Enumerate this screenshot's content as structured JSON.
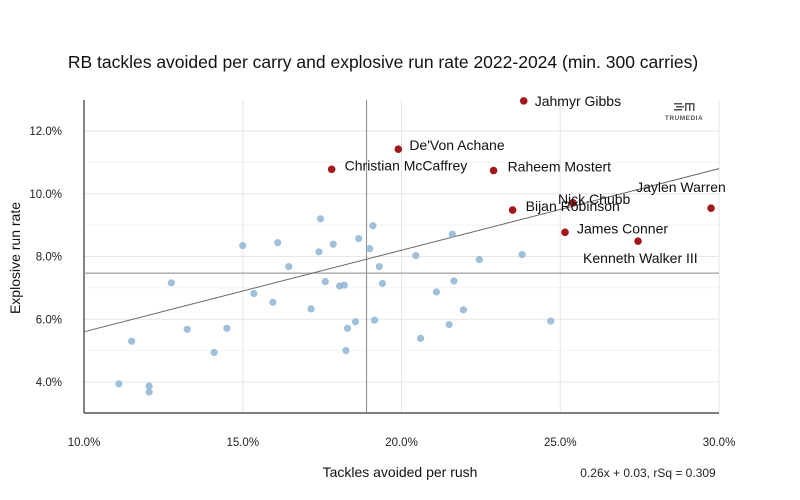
{
  "chart_data": {
    "type": "scatter",
    "title": "RB tackles avoided per carry and explosive run rate 2022-2024 (min. 300 carries)",
    "xlabel": "Tackles avoided per rush",
    "ylabel": "Explosive run rate",
    "xlim": [
      10,
      30
    ],
    "ylim": [
      3,
      13
    ],
    "x_ticks": [
      10,
      15,
      20,
      25,
      30
    ],
    "x_tick_labels": [
      "10.0%",
      "15.0%",
      "20.0%",
      "25.0%",
      "30.0%"
    ],
    "y_ticks": [
      4,
      6,
      8,
      10,
      12
    ],
    "y_tick_labels": [
      "4.0%",
      "6.0%",
      "8.0%",
      "10.0%",
      "12.0%"
    ],
    "grid": true,
    "mean_lines": {
      "x": 18.9,
      "y": 7.47
    },
    "trendline": {
      "slope": 0.26,
      "intercept": 0.03,
      "equation": "0.26x + 0.03, rSq = 0.309"
    },
    "logo": "TRUMEDIA",
    "colors": {
      "other": "#8fb4d3",
      "highlight": "#a3191b",
      "trend": "#666666",
      "grid": "#e6e6e6",
      "mean": "#888888"
    },
    "series": [
      {
        "name": "highlighted",
        "points": [
          {
            "label": "Jahmyr Gibbs",
            "x": 23.85,
            "y": 12.96
          },
          {
            "label": "De'Von Achane",
            "x": 19.9,
            "y": 11.42
          },
          {
            "label": "Christian McCaffrey",
            "x": 17.8,
            "y": 10.78
          },
          {
            "label": "Raheem Mostert",
            "x": 22.9,
            "y": 10.74
          },
          {
            "label": "Nick Chubb",
            "x": 25.4,
            "y": 9.71
          },
          {
            "label": "Jaylen Warren",
            "x": 29.75,
            "y": 9.54
          },
          {
            "label": "Bijan Robinson",
            "x": 23.5,
            "y": 9.48
          },
          {
            "label": "James Conner",
            "x": 25.15,
            "y": 8.77
          },
          {
            "label": "Kenneth Walker III",
            "x": 27.45,
            "y": 8.49
          }
        ]
      },
      {
        "name": "others",
        "points": [
          {
            "x": 11.1,
            "y": 3.94
          },
          {
            "x": 11.5,
            "y": 5.3
          },
          {
            "x": 12.05,
            "y": 3.68
          },
          {
            "x": 12.05,
            "y": 3.87
          },
          {
            "x": 12.75,
            "y": 7.16
          },
          {
            "x": 13.25,
            "y": 5.68
          },
          {
            "x": 14.1,
            "y": 4.94
          },
          {
            "x": 14.5,
            "y": 5.71
          },
          {
            "x": 15.0,
            "y": 8.35
          },
          {
            "x": 15.35,
            "y": 6.82
          },
          {
            "x": 15.95,
            "y": 6.54
          },
          {
            "x": 16.1,
            "y": 8.44
          },
          {
            "x": 16.45,
            "y": 7.68
          },
          {
            "x": 17.15,
            "y": 6.33
          },
          {
            "x": 17.4,
            "y": 8.15
          },
          {
            "x": 17.45,
            "y": 9.2
          },
          {
            "x": 17.6,
            "y": 7.2
          },
          {
            "x": 17.85,
            "y": 8.39
          },
          {
            "x": 18.05,
            "y": 7.06
          },
          {
            "x": 18.2,
            "y": 7.09
          },
          {
            "x": 18.25,
            "y": 5.0
          },
          {
            "x": 18.3,
            "y": 5.71
          },
          {
            "x": 18.55,
            "y": 5.92
          },
          {
            "x": 18.65,
            "y": 8.57
          },
          {
            "x": 19.0,
            "y": 8.25
          },
          {
            "x": 19.1,
            "y": 8.98
          },
          {
            "x": 19.15,
            "y": 5.97
          },
          {
            "x": 19.3,
            "y": 7.68
          },
          {
            "x": 19.4,
            "y": 7.14
          },
          {
            "x": 20.45,
            "y": 8.03
          },
          {
            "x": 20.6,
            "y": 5.39
          },
          {
            "x": 21.1,
            "y": 6.87
          },
          {
            "x": 21.5,
            "y": 5.83
          },
          {
            "x": 21.6,
            "y": 8.71
          },
          {
            "x": 21.65,
            "y": 7.22
          },
          {
            "x": 21.95,
            "y": 6.3
          },
          {
            "x": 22.45,
            "y": 7.9
          },
          {
            "x": 23.8,
            "y": 8.06
          },
          {
            "x": 24.7,
            "y": 5.94
          }
        ]
      }
    ]
  }
}
